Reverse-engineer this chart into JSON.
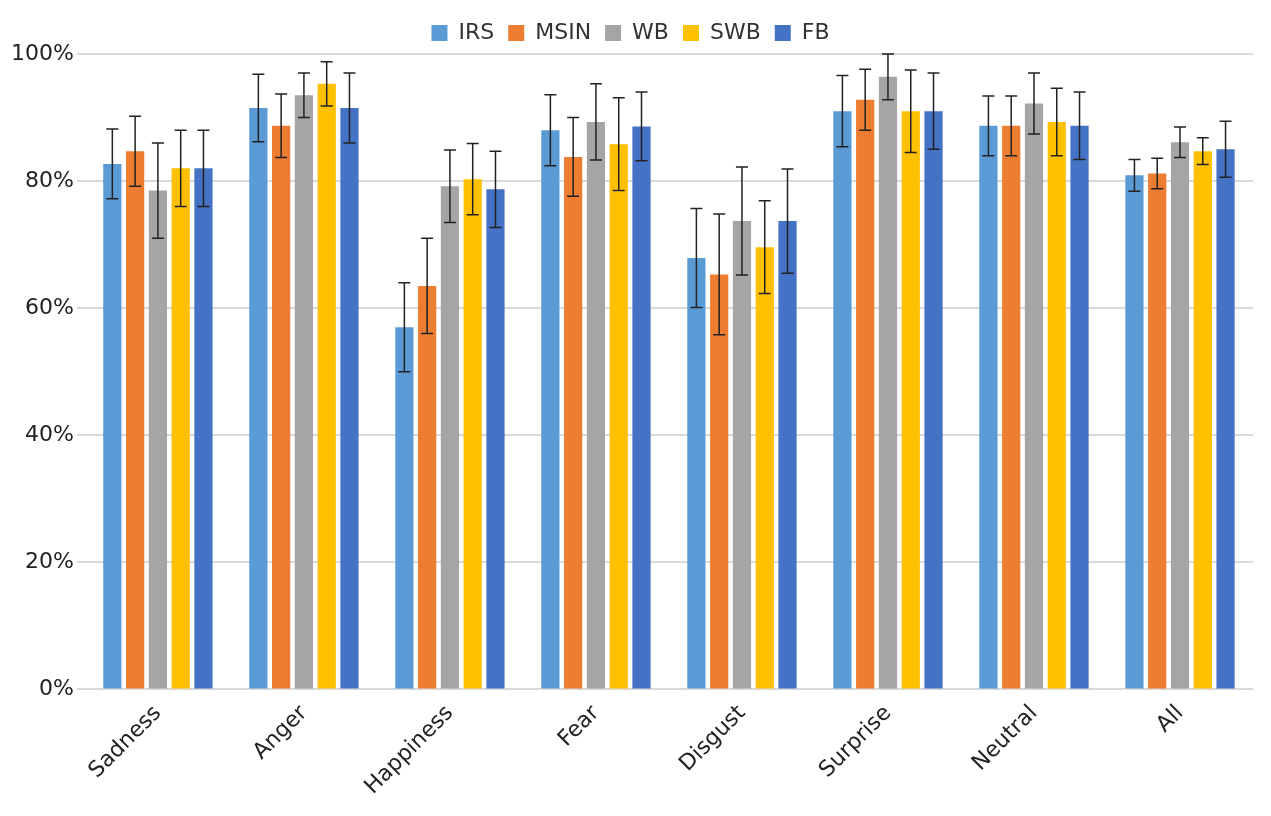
{
  "chart_data": {
    "type": "bar",
    "categories": [
      "Sadness",
      "Anger",
      "Happiness",
      "Fear",
      "Disgust",
      "Surprise",
      "Neutral",
      "All"
    ],
    "series": [
      {
        "name": "IRS",
        "color": "#5b9bd5",
        "values": [
          82.7,
          91.5,
          57,
          88,
          67.9,
          91,
          88.7,
          80.9
        ],
        "errors": [
          5.5,
          5.3,
          7,
          5.6,
          7.8,
          5.6,
          4.7,
          2.5
        ]
      },
      {
        "name": "MSIN",
        "color": "#ed7d31",
        "values": [
          84.7,
          88.7,
          63.5,
          83.8,
          65.3,
          92.8,
          88.7,
          81.2
        ],
        "errors": [
          5.5,
          5,
          7.5,
          6.2,
          9.5,
          4.8,
          4.7,
          2.4
        ]
      },
      {
        "name": "WB",
        "color": "#a5a5a5",
        "values": [
          78.5,
          93.5,
          79.2,
          89.3,
          73.7,
          96.4,
          92.2,
          86.1
        ],
        "errors": [
          7.5,
          3.5,
          5.7,
          6,
          8.5,
          3.6,
          4.8,
          2.4
        ]
      },
      {
        "name": "SWB",
        "color": "#ffc000",
        "values": [
          82,
          95.3,
          80.3,
          85.8,
          69.6,
          91,
          89.3,
          84.7
        ],
        "errors": [
          6,
          3.5,
          5.6,
          7.3,
          7.3,
          6.5,
          5.3,
          2.1
        ]
      },
      {
        "name": "FB",
        "color": "#4472c4",
        "values": [
          82,
          91.5,
          78.7,
          88.6,
          73.7,
          91,
          88.7,
          85
        ],
        "errors": [
          6,
          5.5,
          6,
          5.4,
          8.2,
          6,
          5.3,
          4.4
        ]
      }
    ],
    "ylim": [
      0,
      100
    ],
    "yticks": [
      {
        "value": 0,
        "label": "0%"
      },
      {
        "value": 20,
        "label": "20%"
      },
      {
        "value": 40,
        "label": "40%"
      },
      {
        "value": 60,
        "label": "60%"
      },
      {
        "value": 80,
        "label": "80%"
      },
      {
        "value": 100,
        "label": "100%"
      }
    ],
    "grid": "y",
    "legend": "top"
  }
}
